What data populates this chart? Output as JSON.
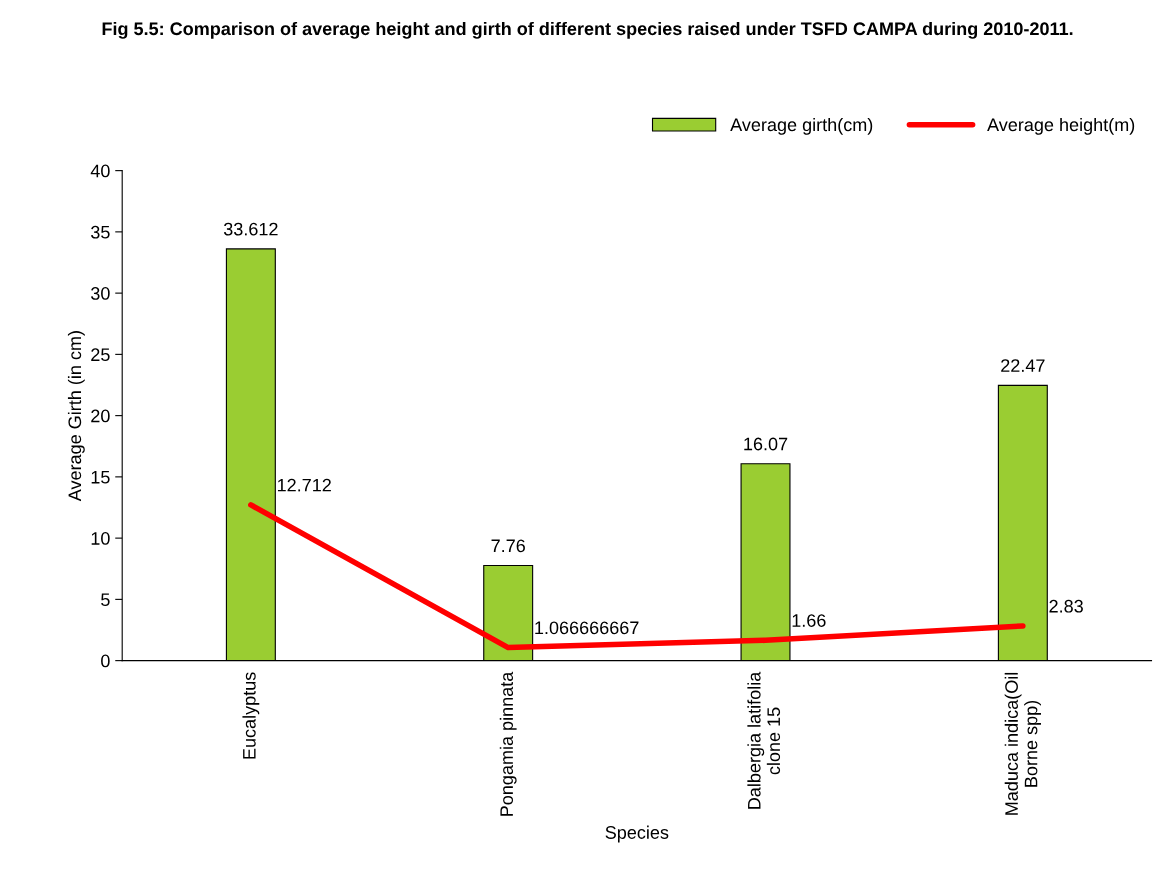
{
  "chart_data": {
    "type": "bar",
    "title": "Fig 5.5: Comparison of average height and girth of different species raised under TSFD CAMPA during 2010-2011.",
    "xlabel": "Species",
    "ylabel": "Average Girth (in cm)",
    "categories": [
      "Eucalyptus",
      "Pongamia pinnata",
      "Dalbergia latifolia clone 15",
      "Maduca indica(Oil Borne spp)"
    ],
    "series": [
      {
        "name": "Average girth(cm)",
        "color": "#9acd32",
        "values": [
          33.612,
          7.76,
          16.07,
          22.47
        ]
      },
      {
        "name": "Average height(m)",
        "type": "line",
        "color": "#ff0000",
        "values": [
          12.712,
          1.066666667,
          1.66,
          2.83
        ]
      }
    ],
    "ylim": [
      0,
      40
    ],
    "yticks": [
      0,
      5,
      10,
      15,
      20,
      25,
      30,
      35,
      40
    ],
    "data_labels": true,
    "legend": "top right",
    "grid": false
  }
}
